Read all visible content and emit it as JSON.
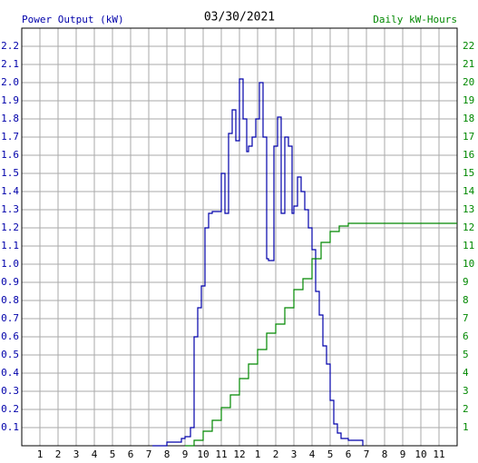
{
  "chart_data": {
    "type": "line",
    "step": true,
    "title": "03/30/2021",
    "y_label": "Power Output (kW)",
    "y2_label": "Daily kW-Hours",
    "grid": true,
    "xlim": [
      0,
      24
    ],
    "ylim": [
      0,
      2.3
    ],
    "y2lim": [
      0,
      23
    ],
    "xticks": [
      1,
      2,
      3,
      4,
      5,
      6,
      7,
      8,
      9,
      10,
      11,
      12,
      {
        "value": 13,
        "label": "1"
      },
      {
        "value": 14,
        "label": "2"
      },
      {
        "value": 15,
        "label": "3"
      },
      {
        "value": 16,
        "label": "4"
      },
      {
        "value": 17,
        "label": "5"
      },
      {
        "value": 18,
        "label": "6"
      },
      {
        "value": 19,
        "label": "7"
      },
      {
        "value": 20,
        "label": "8"
      },
      {
        "value": 21,
        "label": "9"
      },
      {
        "value": 22,
        "label": "10"
      },
      {
        "value": 23,
        "label": "11"
      }
    ],
    "yticks": [
      0.1,
      0.2,
      0.3,
      0.4,
      0.5,
      0.6,
      0.7,
      0.8,
      0.9,
      {
        "value": 1,
        "label": "1.0"
      },
      1.1,
      1.2,
      1.3,
      1.4,
      1.5,
      1.6,
      1.7,
      1.8,
      1.9,
      {
        "value": 2,
        "label": "2.0"
      },
      2.1,
      2.2
    ],
    "y2ticks": [
      1,
      2,
      3,
      4,
      5,
      6,
      7,
      8,
      9,
      10,
      11,
      12,
      13,
      14,
      15,
      16,
      17,
      18,
      19,
      20,
      21,
      22
    ],
    "series": [
      {
        "name": "Power Output (kW)",
        "color": "#0000aa",
        "x": [
          7.2,
          8.0,
          8.8,
          9.0,
          9.3,
          9.5,
          9.7,
          9.9,
          10.1,
          10.3,
          10.5,
          10.7,
          11.0,
          11.2,
          11.4,
          11.6,
          11.8,
          12.0,
          12.2,
          12.4,
          12.5,
          12.7,
          12.9,
          13.1,
          13.3,
          13.5,
          13.6,
          13.9,
          14.1,
          14.3,
          14.5,
          14.7,
          14.9,
          15.0,
          15.2,
          15.4,
          15.6,
          15.8,
          16.0,
          16.2,
          16.4,
          16.6,
          16.8,
          17.0,
          17.2,
          17.4,
          17.6,
          18.0,
          18.5,
          18.8
        ],
        "values": [
          0,
          0.02,
          0.04,
          0.05,
          0.1,
          0.6,
          0.76,
          0.88,
          1.2,
          1.28,
          1.29,
          1.29,
          1.5,
          1.28,
          1.72,
          1.85,
          1.68,
          2.02,
          1.8,
          1.62,
          1.65,
          1.7,
          1.8,
          2.0,
          1.7,
          1.03,
          1.02,
          1.65,
          1.81,
          1.28,
          1.7,
          1.65,
          1.28,
          1.32,
          1.48,
          1.4,
          1.3,
          1.2,
          1.08,
          0.85,
          0.72,
          0.55,
          0.45,
          0.25,
          0.12,
          0.07,
          0.04,
          0.03,
          0.03,
          0
        ]
      },
      {
        "name": "Daily kW-Hours",
        "color": "#008800",
        "axis": "y2",
        "x": [
          9.0,
          9.5,
          10.0,
          10.5,
          11.0,
          11.5,
          12.0,
          12.5,
          13.0,
          13.5,
          14.0,
          14.5,
          15.0,
          15.5,
          16.0,
          16.5,
          17.0,
          17.5,
          18.0,
          24.0
        ],
        "values": [
          0,
          0.3,
          0.8,
          1.4,
          2.1,
          2.8,
          3.7,
          4.5,
          5.3,
          6.2,
          6.7,
          7.6,
          8.6,
          9.2,
          10.3,
          11.2,
          11.8,
          12.1,
          12.25,
          12.25
        ]
      }
    ]
  }
}
